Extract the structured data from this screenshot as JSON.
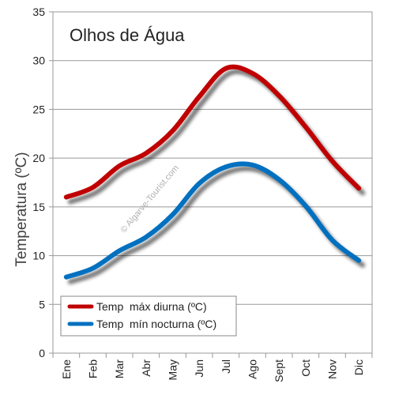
{
  "chart_data": {
    "type": "line",
    "title": "Olhos de Água",
    "xlabel": "",
    "ylabel": "Temperatura (ºC)",
    "watermark": "© Algarve-Tourist.com",
    "categories": [
      "Ene",
      "Feb",
      "Mar",
      "Abr",
      "May",
      "Jun",
      "Jul",
      "Ago",
      "Sept",
      "Oct",
      "Nov",
      "Dic"
    ],
    "ylim": [
      0,
      35
    ],
    "yticks": [
      0,
      5,
      10,
      15,
      20,
      25,
      30,
      35
    ],
    "grid": true,
    "legend_position": "bottom-left",
    "series": [
      {
        "name": "Temp  máx diurna (ºC)",
        "color": "#c00000",
        "values": [
          16.0,
          17.0,
          19.2,
          20.5,
          22.8,
          26.3,
          29.2,
          28.7,
          26.4,
          23.2,
          19.7,
          16.9
        ]
      },
      {
        "name": "Temp  mín nocturna (ºC)",
        "color": "#0070c0",
        "values": [
          7.8,
          8.7,
          10.5,
          11.9,
          14.2,
          17.4,
          19.1,
          19.3,
          17.8,
          15.1,
          11.6,
          9.5
        ]
      }
    ]
  }
}
